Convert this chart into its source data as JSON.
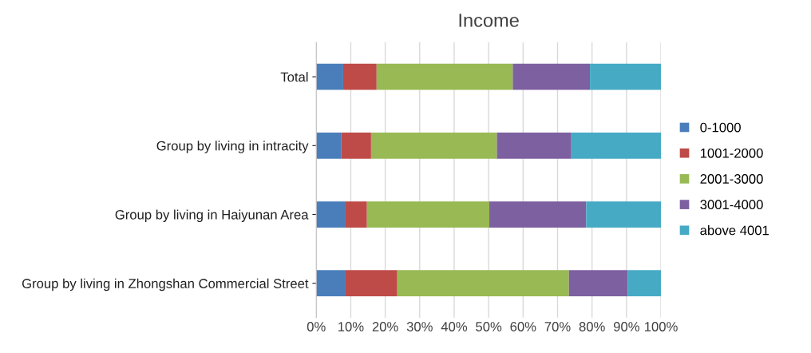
{
  "chart_data": {
    "type": "bar",
    "orientation": "horizontal",
    "stacked": true,
    "title": "Income",
    "categories": [
      "Total",
      "Group by living in intracity",
      "Group by living in Haiyunan Area",
      "Group by living in Zhongshan Commercial Street"
    ],
    "series": [
      {
        "name": "0-1000",
        "color": "#4a7ebb",
        "values": [
          7.8,
          7.2,
          8.3,
          8.3
        ]
      },
      {
        "name": "1001-2000",
        "color": "#be4b48",
        "values": [
          9.7,
          8.7,
          6.4,
          15.2
        ]
      },
      {
        "name": "2001-3000",
        "color": "#98b954",
        "values": [
          39.5,
          36.5,
          35.5,
          49.8
        ]
      },
      {
        "name": "3001-4000",
        "color": "#7d60a0",
        "values": [
          22.4,
          21.6,
          28.1,
          17.1
        ]
      },
      {
        "name": "above 4001",
        "color": "#46aac5",
        "values": [
          20.6,
          26.0,
          21.7,
          9.6
        ]
      }
    ],
    "xlim": [
      0,
      100
    ],
    "xticks": [
      {
        "value": 0,
        "label": "0%"
      },
      {
        "value": 10,
        "label": "10%"
      },
      {
        "value": 20,
        "label": "20%"
      },
      {
        "value": 30,
        "label": "30%"
      },
      {
        "value": 40,
        "label": "40%"
      },
      {
        "value": 50,
        "label": "50%"
      },
      {
        "value": 60,
        "label": "60%"
      },
      {
        "value": 70,
        "label": "70%"
      },
      {
        "value": 80,
        "label": "80%"
      },
      {
        "value": 90,
        "label": "90%"
      },
      {
        "value": 100,
        "label": "100%"
      }
    ],
    "grid": "x",
    "legend": "right"
  }
}
